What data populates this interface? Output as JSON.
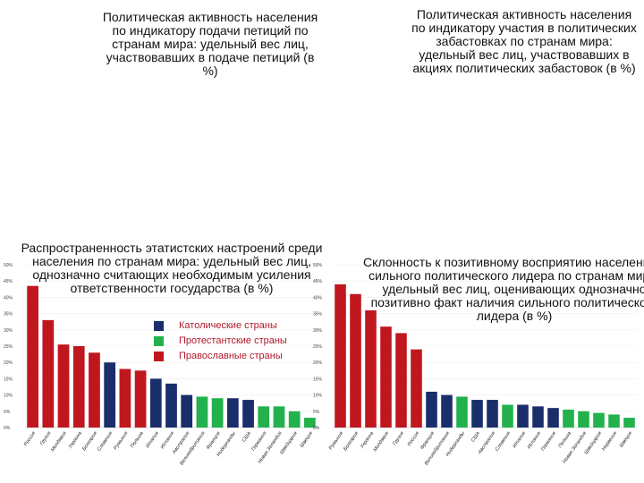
{
  "titles": {
    "t1": "Политическая активность населения по индикатору подачи петиций по странам мира: удельный вес лиц, участвовавших в подаче петиций (в %)",
    "t2": "Политическая активность населения по индикатору участия в политических забастовках по странам мира: удельный вес лиц, участвовавших в акциях политических забастовок (в %)",
    "t3": "Распространенность этатистских настроений среди населения по странам мира: удельный вес лиц, однозначно считающих необходимым усиления ответственности государства (в %)",
    "t4": "Склонность к позитивному восприятию населением сильного политического лидера по странам мира: удельный вес лиц, оценивающих однозначно позитивно факт наличия сильного политического лидера (в %)"
  },
  "legend": [
    {
      "label": "Католические страны",
      "color": "#1a2e6b"
    },
    {
      "label": "Протестантские страны",
      "color": "#22b14c"
    },
    {
      "label": "Православные страны",
      "color": "#c0171f"
    }
  ],
  "colors": {
    "catholic": "#1a2e6b",
    "protestant": "#22b14c",
    "orthodox": "#c0171f"
  },
  "chart_data": [
    {
      "type": "bar",
      "ylim": [
        0,
        50
      ],
      "yticks": [
        0,
        5,
        10,
        15,
        20,
        25,
        30,
        35,
        40,
        45,
        50
      ],
      "tick_suffix": "%",
      "categories": [
        "Россия",
        "Грузия",
        "Молдавия",
        "Украина",
        "Болгария",
        "Словения",
        "Румыния",
        "Польша",
        "Италия",
        "Испания",
        "Австралия",
        "Великобритания",
        "Франция",
        "Нидерланды",
        "США",
        "Германия",
        "Новая Зеландия",
        "Швейцария",
        "Швеция"
      ],
      "groups": [
        "orthodox",
        "orthodox",
        "orthodox",
        "orthodox",
        "orthodox",
        "catholic",
        "orthodox",
        "orthodox",
        "catholic",
        "catholic",
        "catholic",
        "protestant",
        "protestant",
        "catholic",
        "catholic",
        "protestant",
        "protestant",
        "protestant",
        "protestant"
      ],
      "values": [
        43.5,
        33,
        25.5,
        25,
        23,
        20,
        18,
        17.5,
        15,
        13.5,
        10,
        9.5,
        9,
        9,
        8.5,
        6.5,
        6.5,
        5,
        3
      ]
    },
    {
      "type": "bar",
      "ylim": [
        0,
        50
      ],
      "yticks": [
        0,
        5,
        10,
        15,
        20,
        25,
        30,
        35,
        40,
        45,
        50
      ],
      "tick_suffix": "%",
      "categories": [
        "Румыния",
        "Болгария",
        "Украина",
        "Молдавия",
        "Грузия",
        "Россия",
        "Франция",
        "Великобритания",
        "Нидерланды",
        "США",
        "Австралия",
        "Словения",
        "Италия",
        "Испания",
        "Германия",
        "Польша",
        "Новая Зеландия",
        "Швейцария",
        "Норвегия",
        "Швеция"
      ],
      "groups": [
        "orthodox",
        "orthodox",
        "orthodox",
        "orthodox",
        "orthodox",
        "orthodox",
        "catholic",
        "catholic",
        "protestant",
        "catholic",
        "catholic",
        "protestant",
        "catholic",
        "catholic",
        "catholic",
        "protestant",
        "protestant",
        "protestant",
        "protestant",
        "protestant"
      ],
      "values": [
        44,
        41,
        36,
        31,
        29,
        24,
        11,
        10,
        9.5,
        8.5,
        8.5,
        7,
        7,
        6.5,
        6,
        5.5,
        5,
        4.5,
        4,
        3
      ]
    }
  ]
}
